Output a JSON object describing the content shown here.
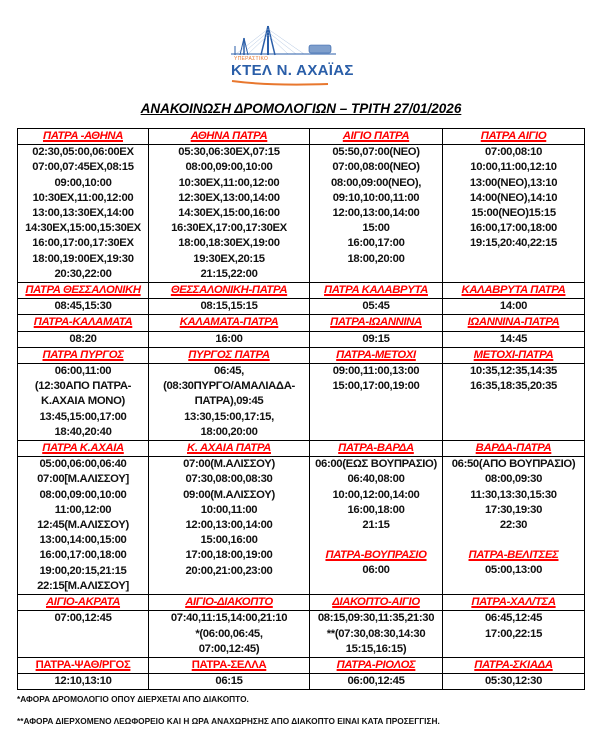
{
  "logo": {
    "small_text": "ΥΠΕΡΑΣΤΙΚΟ",
    "name": "ΚΤΕΛ Ν. ΑΧΑΪΑΣ",
    "brand_color": "#2a5ea8",
    "accent_color": "#e8772e"
  },
  "title": "ΑΝΑΚΟΙΝΩΣΗ ΔΡΟΜΟΛΟΓΙΩΝ – ΤΡΙΤΗ 27/01/2026",
  "header_color": "#ff0000",
  "rows": [
    {
      "cells": [
        {
          "blocks": [
            {
              "header": "ΠΑΤΡΑ -ΑΘΗΝΑ",
              "lines": [
                "02:30,05:00,06:00ΕΧ",
                "07:00,07:45ΕΧ,08:15",
                "09:00,10:00",
                "10:30ΕΧ,11:00,12:00",
                "13:00,13:30ΕΧ,14:00",
                "14:30ΕΧ,15:00,15:30ΕΧ",
                "16:00,17:00,17:30ΕΧ",
                "18:00,19:00ΕΧ,19:30",
                "20:30,22:00"
              ]
            }
          ]
        },
        {
          "blocks": [
            {
              "header": "ΑΘΗΝΑ ΠΑΤΡΑ",
              "lines": [
                "05:30,06:30ΕΧ,07:15",
                "08:00,09:00,10:00",
                "10:30ΕΧ,11:00,12:00",
                "12:30ΕΧ,13:00,14:00",
                "14:30ΕΧ,15:00,16:00",
                "16:30ΕΧ,17:00,17:30ΕΧ",
                "18:00,18:30ΕΧ,19:00",
                "19:30ΕΧ,20:15",
                "21:15,22:00"
              ]
            }
          ]
        },
        {
          "blocks": [
            {
              "header": "ΑΙΓΙΟ ΠΑΤΡΑ",
              "lines": [
                "05:50,07:00(ΝΕΟ)",
                "07:00,08:00(ΝΕΟ)",
                "08:00,09:00(ΝΕΟ),",
                "09:10,10:00,11:00",
                "12:00,13:00,14:00",
                "15:00",
                "16:00,17:00",
                "18:00,20:00"
              ]
            }
          ]
        },
        {
          "blocks": [
            {
              "header": "ΠΑΤΡΑ ΑΙΓΙΟ",
              "lines": [
                "07:00,08:10",
                "10:00,11:00,12:10",
                "13:00(ΝΕΟ),13:10",
                "14:00(ΝΕΟ),14:10",
                "15:00(ΝΕΟ)15:15",
                "16:00,17:00,18:00",
                "19:15,20:40,22:15"
              ]
            }
          ]
        }
      ]
    },
    {
      "cells": [
        {
          "blocks": [
            {
              "header": "ΠΑΤΡΑ ΘΕΣΣΑΛΟΝΙΚΗ",
              "lines": [
                "08:45,15:30"
              ]
            }
          ]
        },
        {
          "blocks": [
            {
              "header": "ΘΕΣΣΑΛΟΝΙΚΗ-ΠΑΤΡΑ",
              "lines": [
                "08:15,15:15"
              ]
            }
          ]
        },
        {
          "blocks": [
            {
              "header": "ΠΑΤΡΑ ΚΑΛΑΒΡΥΤΑ",
              "lines": [
                "05:45"
              ]
            }
          ]
        },
        {
          "blocks": [
            {
              "header": "ΚΑΛΑΒΡΥΤΑ ΠΑΤΡΑ",
              "lines": [
                "14:00"
              ]
            }
          ]
        }
      ]
    },
    {
      "cells": [
        {
          "blocks": [
            {
              "header": "ΠΑΤΡΑ-ΚΑΛΑΜΑΤΑ",
              "lines": [
                "08:20"
              ]
            }
          ]
        },
        {
          "blocks": [
            {
              "header": "ΚΑΛΑΜΑΤΑ-ΠΑΤΡΑ",
              "lines": [
                "16:00"
              ]
            }
          ]
        },
        {
          "blocks": [
            {
              "header": "ΠΑΤΡΑ-ΙΩΑΝΝΙΝΑ",
              "lines": [
                "09:15"
              ]
            }
          ]
        },
        {
          "blocks": [
            {
              "header": "ΙΩΑΝΝΙΝΑ-ΠΑΤΡΑ",
              "lines": [
                "14:45"
              ]
            }
          ]
        }
      ]
    },
    {
      "cells": [
        {
          "blocks": [
            {
              "header": "ΠΑΤΡΑ ΠΥΡΓΟΣ",
              "lines": [
                "06:00,11:00",
                "(12:30ΑΠΟ ΠΑΤΡΑ-",
                "Κ.ΑΧΑΙΑ ΜΟΝΟ)",
                "13:45,15:00,17:00",
                "18:40,20:40"
              ]
            }
          ]
        },
        {
          "blocks": [
            {
              "header": "ΠΥΡΓΟΣ ΠΑΤΡΑ",
              "lines": [
                "06:45,",
                "(08:30ΠΥΡΓΟ/ΑΜΑΛΙΑΔΑ-",
                "ΠΑΤΡΑ),09:45",
                "13:30,15:00,17:15,",
                "18:00,20:00"
              ]
            }
          ]
        },
        {
          "blocks": [
            {
              "header": "ΠΑΤΡΑ-ΜΕΤΟΧΙ",
              "lines": [
                "09:00,11:00,13:00",
                "15:00,17:00,19:00"
              ]
            }
          ]
        },
        {
          "blocks": [
            {
              "header": "ΜΕΤΟΧΙ-ΠΑΤΡΑ",
              "lines": [
                "10:35,12:35,14:35",
                "16:35,18:35,20:35"
              ]
            }
          ]
        }
      ]
    },
    {
      "cells": [
        {
          "blocks": [
            {
              "header": "ΠΑΤΡΑ Κ.ΑΧΑΙΑ",
              "lines": [
                "05:00,06:00,06:40",
                "07:00[Μ.ΑΛΙΣΣΟΥ]",
                "08:00,09:00,10:00",
                "11:00,12:00",
                "12:45(Μ.ΑΛΙΣΣΟΥ)",
                "13:00,14:00,15:00",
                "16:00,17:00,18:00",
                "19:00,20:15,21:15",
                "22:15[Μ.ΑΛΙΣΣΟΥ]"
              ]
            }
          ]
        },
        {
          "blocks": [
            {
              "header": "Κ. ΑΧΑΙΑ ΠΑΤΡΑ",
              "lines": [
                "07:00(Μ.ΑΛΙΣΣΟΥ)",
                "07:30,08:00,08:30",
                "09:00(Μ.ΑΛΙΣΣΟΥ)",
                "10:00,11:00",
                "12:00,13:00,14:00",
                "15:00,16:00",
                "17:00,18:00,19:00",
                "20:00,21:00,23:00"
              ]
            }
          ]
        },
        {
          "blocks": [
            {
              "header": "ΠΑΤΡΑ-ΒΑΡΔΑ",
              "lines": [
                "06:00(ΕΩΣ ΒΟΥΠΡΑΣΙΟ)",
                "06:40,08:00",
                "10:00,12:00,14:00",
                "16:00,18:00",
                "21:15"
              ]
            },
            {
              "header": "ΠΑΤΡΑ-ΒΟΥΠΡΑΣΙΟ",
              "lines": [
                "06:00"
              ]
            }
          ]
        },
        {
          "blocks": [
            {
              "header": "ΒΑΡΔΑ-ΠΑΤΡΑ",
              "lines": [
                "06:50(ΑΠΟ ΒΟΥΠΡΑΣΙΟ)",
                "08:00,09:30",
                "11:30,13:30,15:30",
                "17:30,19:30",
                "22:30"
              ]
            },
            {
              "header": "ΠΑΤΡΑ-ΒΕΛΙΤΣΕΣ",
              "lines": [
                "05:00,13:00"
              ]
            }
          ]
        }
      ]
    },
    {
      "cells": [
        {
          "blocks": [
            {
              "header": "ΑΙΓΙΟ-ΑΚΡΑΤΑ",
              "lines": [
                "07:00,12:45"
              ]
            }
          ]
        },
        {
          "blocks": [
            {
              "header": "ΑΙΓΙΟ-ΔΙΑΚΟΠΤΟ",
              "lines": [
                "07:40,11:15,14:00,21:10",
                "*(06:00,06:45,",
                "07:00,12:45)"
              ]
            }
          ]
        },
        {
          "blocks": [
            {
              "header": "ΔΙΑΚΟΠΤΟ-ΑΙΓΙΟ",
              "lines": [
                "08:15,09:30,11:35,21:30",
                "**(07:30,08:30,14:30",
                "15:15,16:15)"
              ]
            }
          ]
        },
        {
          "blocks": [
            {
              "header": "ΠΑΤΡΑ-ΧΑΛ/ΤΣΑ",
              "lines": [
                "06:45,12:45",
                "17:00,22:15"
              ]
            }
          ]
        }
      ]
    },
    {
      "cells": [
        {
          "blocks": [
            {
              "header": "ΠΑΤΡΑ-ΨΑΘ/ΡΓΟΣ",
              "italic": false,
              "lines": [
                "12:10,13:10"
              ]
            }
          ]
        },
        {
          "blocks": [
            {
              "header": "ΠΑΤΡΑ-ΣΕΛΛΑ",
              "italic": false,
              "lines": [
                "06:15"
              ]
            }
          ]
        },
        {
          "blocks": [
            {
              "header": "ΠΑΤΡΑ-ΡΙΟΛΟΣ",
              "lines": [
                "06:00,12:45"
              ]
            }
          ]
        },
        {
          "blocks": [
            {
              "header": "ΠΑΤΡΑ-ΣΚΙΑΔΑ",
              "lines": [
                "05:30,12:30"
              ]
            }
          ]
        }
      ]
    }
  ],
  "footnotes": [
    "*ΑΦΟΡΑ ΔΡΟΜΟΛΟΓΙΟ ΟΠΟΥ ΔΙΕΡΧΕΤΑΙ ΑΠΟ ΔΙΑΚΟΠΤΟ.",
    "**ΑΦΟΡΑ ΔΙΕΡΧΟΜΕΝΟ ΛΕΩΦΟΡΕΙΟ ΚΑΙ Η ΩΡΑ ΑΝΑΧΩΡΗΣΗΣ ΑΠΟ ΔΙΑΚΟΠΤΟ ΕΙΝΑΙ ΚΑΤΑ ΠΡΟΣΕΓΓΙΣΗ."
  ]
}
